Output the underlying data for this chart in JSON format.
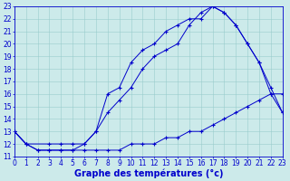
{
  "bg_color": "#cceaea",
  "line_color": "#0000cc",
  "xlabel": "Graphe des températures (°c)",
  "ylim": [
    11,
    23
  ],
  "xlim": [
    0,
    23
  ],
  "line1": {
    "x": [
      0,
      1,
      2,
      3,
      4,
      5,
      6,
      7,
      8,
      9,
      10,
      11,
      12,
      13,
      14,
      15,
      16,
      17,
      18,
      19,
      20,
      21,
      22,
      23
    ],
    "y": [
      13,
      12,
      11.5,
      11.5,
      11.5,
      11.5,
      11.5,
      11.5,
      11.5,
      11.5,
      12,
      12,
      12,
      12.5,
      12.5,
      13,
      13,
      13.5,
      14,
      14.5,
      15,
      15.5,
      16,
      14.5
    ]
  },
  "line2": {
    "x": [
      0,
      1,
      2,
      3,
      4,
      5,
      6,
      7,
      8,
      9,
      10,
      11,
      12,
      13,
      14,
      15,
      16,
      17,
      18,
      19,
      20,
      21,
      22,
      23
    ],
    "y": [
      13,
      12,
      11.5,
      11.5,
      11.5,
      11.5,
      12,
      13,
      16,
      16.5,
      18.5,
      19.5,
      20,
      21,
      21.5,
      22,
      22,
      23,
      22.5,
      21.5,
      20,
      18.5,
      16,
      16
    ]
  },
  "line3": {
    "x": [
      0,
      1,
      3,
      4,
      5,
      6,
      7,
      8,
      9,
      10,
      11,
      12,
      13,
      14,
      15,
      16,
      17,
      18,
      19,
      20,
      21,
      22,
      23
    ],
    "y": [
      13,
      12,
      12,
      12,
      12,
      12,
      13,
      14.5,
      15.5,
      16.5,
      18,
      19,
      19.5,
      20,
      21.5,
      22.5,
      23,
      22.5,
      21.5,
      20,
      18.5,
      16.5,
      14.5
    ]
  },
  "grid_color": "#99cccc",
  "tick_fontsize": 5.5,
  "label_fontsize": 7,
  "xticks": [
    0,
    1,
    2,
    3,
    4,
    5,
    6,
    7,
    8,
    9,
    10,
    11,
    12,
    13,
    14,
    15,
    16,
    17,
    18,
    19,
    20,
    21,
    22,
    23
  ],
  "yticks": [
    11,
    12,
    13,
    14,
    15,
    16,
    17,
    18,
    19,
    20,
    21,
    22,
    23
  ]
}
